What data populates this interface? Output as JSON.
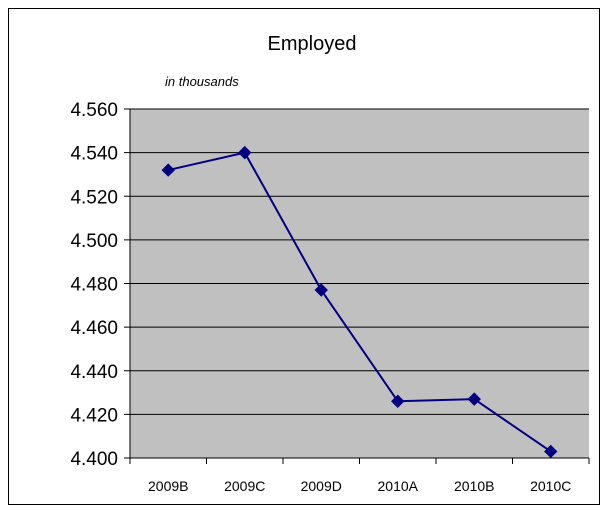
{
  "chart_data": {
    "type": "line",
    "title": "Employed",
    "subtitle": "in thousands",
    "xlabel": "",
    "ylabel": "",
    "categories": [
      "2009B",
      "2009C",
      "2009D",
      "2010A",
      "2010B",
      "2010C"
    ],
    "series": [
      {
        "values": [
          4.532,
          4.54,
          4.477,
          4.426,
          4.427,
          4.403
        ]
      }
    ],
    "ylim": [
      4.4,
      4.56
    ],
    "yticks": [
      "4.400",
      "4.420",
      "4.440",
      "4.460",
      "4.480",
      "4.500",
      "4.520",
      "4.540",
      "4.560"
    ],
    "grid": true,
    "legend": "none",
    "colors": {
      "plot_background": "#c0c0c0",
      "line": "#000080",
      "marker": "#000080",
      "gridline": "#000000"
    },
    "marker": "diamond-icon"
  }
}
